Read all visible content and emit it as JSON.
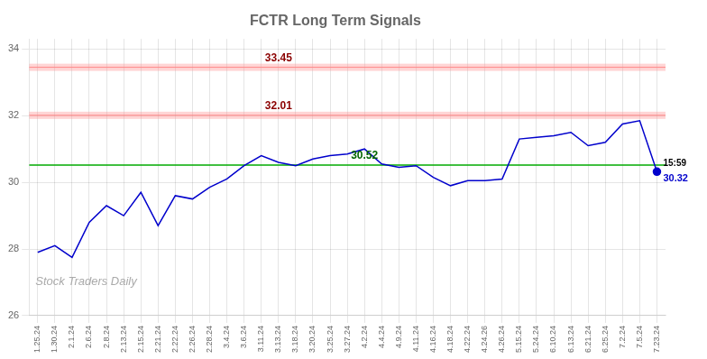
{
  "chart_data": {
    "type": "line",
    "title": "FCTR Long Term Signals",
    "categories": [
      "1.25.24",
      "1.30.24",
      "2.1.24",
      "2.6.24",
      "2.8.24",
      "2.13.24",
      "2.15.24",
      "2.21.24",
      "2.22.24",
      "2.26.24",
      "2.28.24",
      "3.4.24",
      "3.6.24",
      "3.11.24",
      "3.13.24",
      "3.18.24",
      "3.20.24",
      "3.25.24",
      "3.27.24",
      "4.2.24",
      "4.4.24",
      "4.9.24",
      "4.11.24",
      "4.16.24",
      "4.18.24",
      "4.22.24",
      "4.24.26",
      "4.26.24",
      "5.15.24",
      "5.24.24",
      "6.10.24",
      "6.13.24",
      "6.21.24",
      "6.25.24",
      "7.2.24",
      "7.5.24",
      "7.23.24"
    ],
    "series": [
      {
        "color": "#0000cc",
        "values": [
          27.9,
          28.1,
          27.75,
          28.8,
          29.3,
          29.0,
          29.7,
          28.7,
          29.6,
          29.5,
          29.85,
          30.1,
          30.5,
          30.8,
          30.6,
          30.5,
          30.7,
          30.8,
          30.85,
          31.0,
          30.55,
          30.45,
          30.5,
          30.15,
          29.9,
          30.05,
          30.05,
          30.1,
          31.3,
          31.35,
          31.4,
          31.5,
          31.1,
          31.2,
          31.75,
          31.85,
          30.32
        ]
      }
    ],
    "hlines": [
      {
        "value": 33.45,
        "label": "33.45",
        "color": "#ff8888",
        "label_color": "#8b0000",
        "line_style": "band"
      },
      {
        "value": 32.01,
        "label": "32.01",
        "color": "#ff8888",
        "label_color": "#8b0000",
        "line_style": "band"
      },
      {
        "value": 30.52,
        "label": "30.52",
        "color": "#00aa00",
        "label_color": "#006400",
        "line_style": "solid"
      }
    ],
    "last_point": {
      "label": "30.32",
      "time": "15:59",
      "color": "#0000cc"
    },
    "watermark": {
      "text": "Stock Traders Daily",
      "color": "#aaaaaa"
    },
    "ylim": [
      26,
      34.3
    ],
    "yticks": [
      26,
      28,
      30,
      32,
      34
    ],
    "grid": true
  }
}
